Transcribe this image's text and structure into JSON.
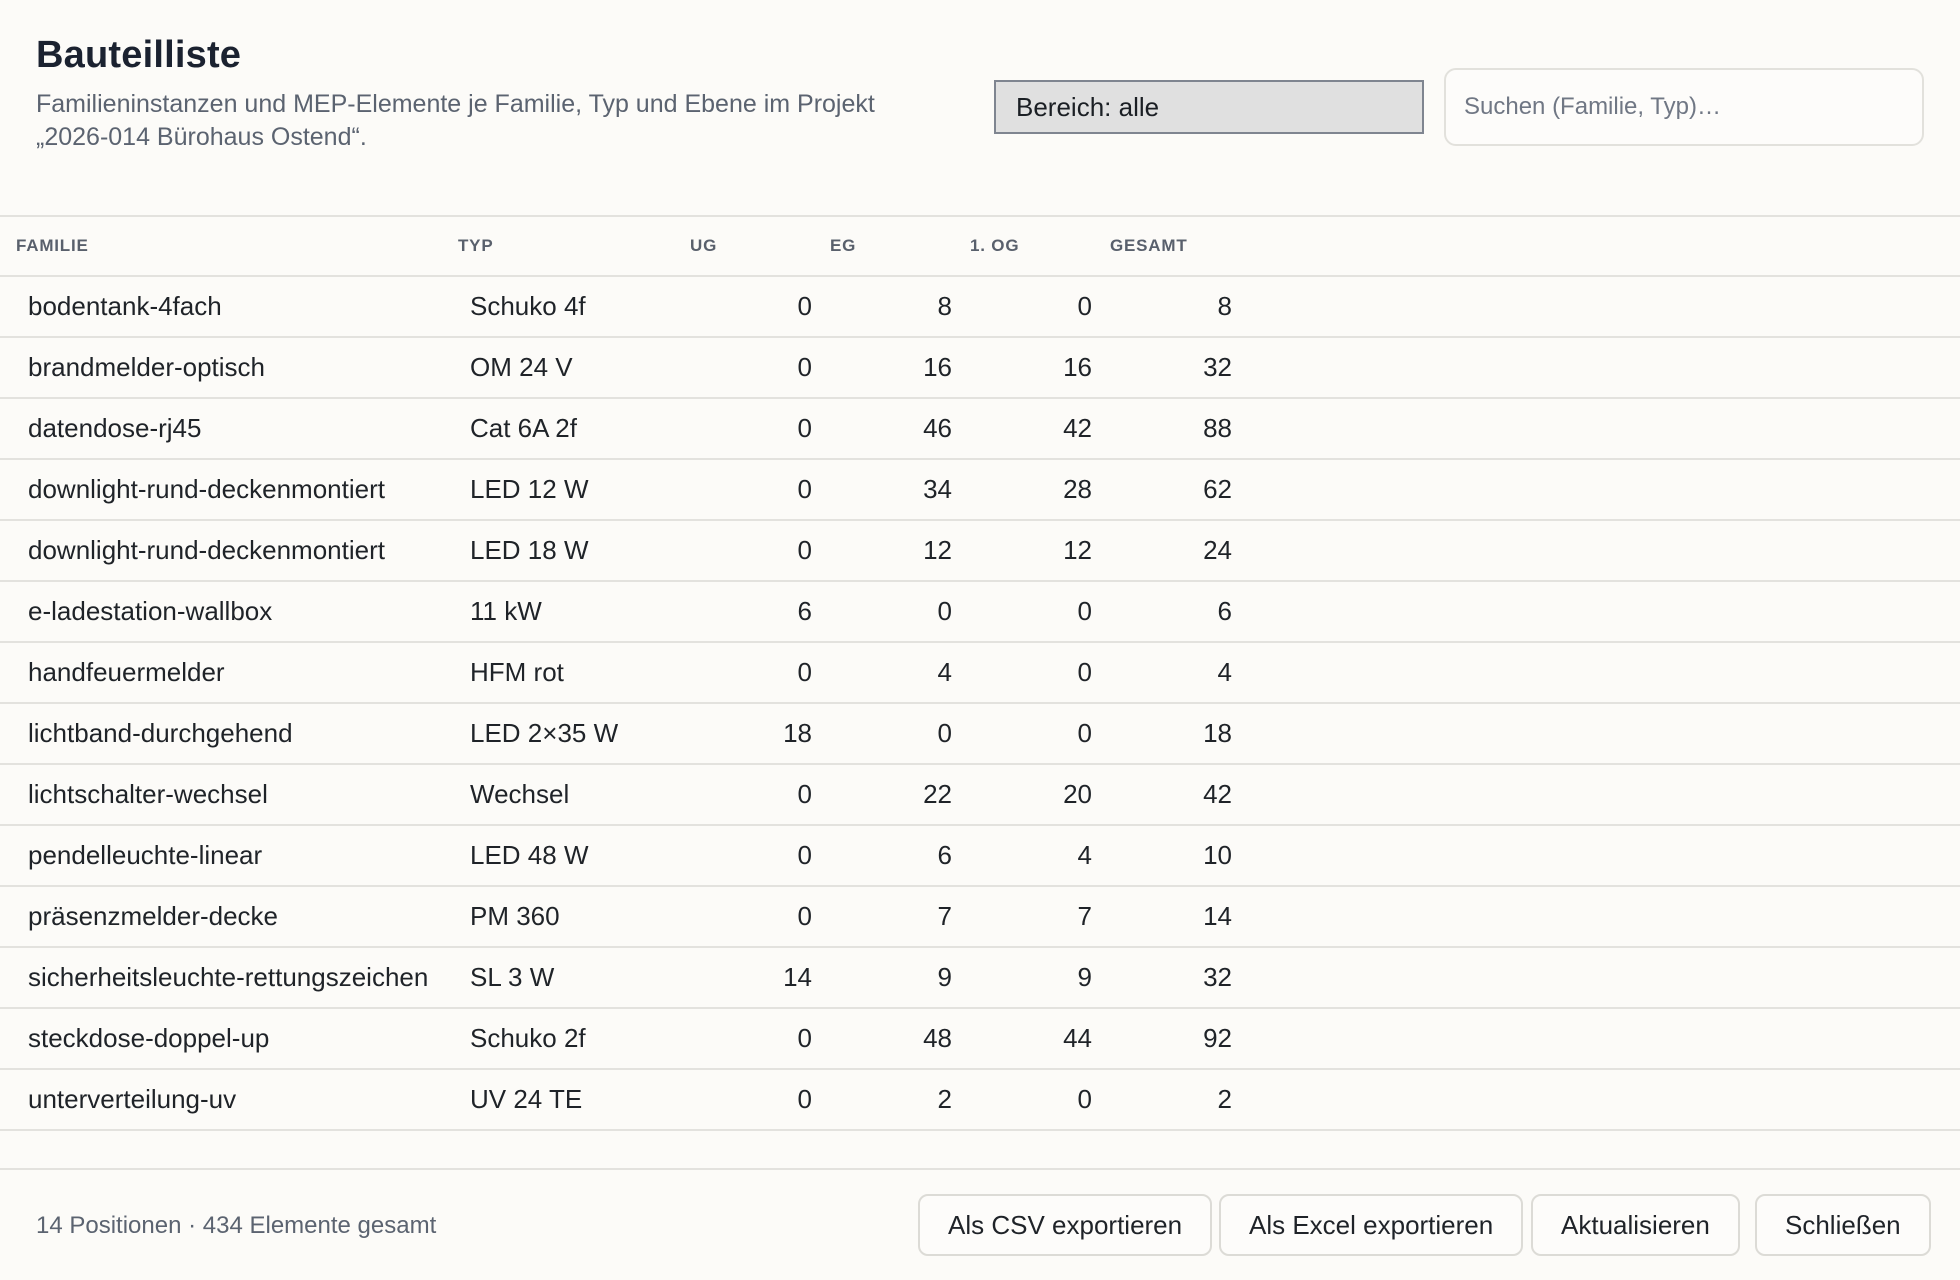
{
  "header": {
    "title": "Bauteilliste",
    "subtitle": "Familieninstanzen und MEP-Elemente je Familie, Typ und Ebene im Projekt „2026-014 Bürohaus Ostend“.",
    "scope_select_value": "Bereich: alle",
    "search_placeholder": "Suchen (Familie, Typ)…"
  },
  "table": {
    "columns": [
      "Familie",
      "Typ",
      "UG",
      "EG",
      "1. OG",
      "Gesamt"
    ],
    "rows": [
      {
        "familie": "bodentank-4fach",
        "typ": "Schuko 4f",
        "ug": "0",
        "eg": "8",
        "og1": "0",
        "gesamt": "8"
      },
      {
        "familie": "brandmelder-optisch",
        "typ": "OM 24 V",
        "ug": "0",
        "eg": "16",
        "og1": "16",
        "gesamt": "32"
      },
      {
        "familie": "datendose-rj45",
        "typ": "Cat 6A 2f",
        "ug": "0",
        "eg": "46",
        "og1": "42",
        "gesamt": "88"
      },
      {
        "familie": "downlight-rund-deckenmontiert",
        "typ": "LED 12 W",
        "ug": "0",
        "eg": "34",
        "og1": "28",
        "gesamt": "62"
      },
      {
        "familie": "downlight-rund-deckenmontiert",
        "typ": "LED 18 W",
        "ug": "0",
        "eg": "12",
        "og1": "12",
        "gesamt": "24"
      },
      {
        "familie": "e-ladestation-wallbox",
        "typ": "11 kW",
        "ug": "6",
        "eg": "0",
        "og1": "0",
        "gesamt": "6"
      },
      {
        "familie": "handfeuermelder",
        "typ": "HFM rot",
        "ug": "0",
        "eg": "4",
        "og1": "0",
        "gesamt": "4"
      },
      {
        "familie": "lichtband-durchgehend",
        "typ": "LED 2×35 W",
        "ug": "18",
        "eg": "0",
        "og1": "0",
        "gesamt": "18"
      },
      {
        "familie": "lichtschalter-wechsel",
        "typ": "Wechsel",
        "ug": "0",
        "eg": "22",
        "og1": "20",
        "gesamt": "42"
      },
      {
        "familie": "pendelleuchte-linear",
        "typ": "LED 48 W",
        "ug": "0",
        "eg": "6",
        "og1": "4",
        "gesamt": "10"
      },
      {
        "familie": "präsenzmelder-decke",
        "typ": "PM 360",
        "ug": "0",
        "eg": "7",
        "og1": "7",
        "gesamt": "14"
      },
      {
        "familie": "sicherheitsleuchte-rettungszeichen",
        "typ": "SL 3 W",
        "ug": "14",
        "eg": "9",
        "og1": "9",
        "gesamt": "32"
      },
      {
        "familie": "steckdose-doppel-up",
        "typ": "Schuko 2f",
        "ug": "0",
        "eg": "48",
        "og1": "44",
        "gesamt": "92"
      },
      {
        "familie": "unterverteilung-uv",
        "typ": "UV 24 TE",
        "ug": "0",
        "eg": "2",
        "og1": "0",
        "gesamt": "2"
      }
    ]
  },
  "footer": {
    "summary": "14 Positionen · 434 Elemente gesamt",
    "buttons": {
      "csv": "Als CSV exportieren",
      "excel": "Als Excel exportieren",
      "refresh": "Aktualisieren",
      "close": "Schließen"
    }
  },
  "colors": {
    "background": "#fcfbf8",
    "border": "#e3e2de",
    "title": "#1b2230",
    "muted_text": "#5b6370",
    "select_bg": "#e0e0e0"
  }
}
